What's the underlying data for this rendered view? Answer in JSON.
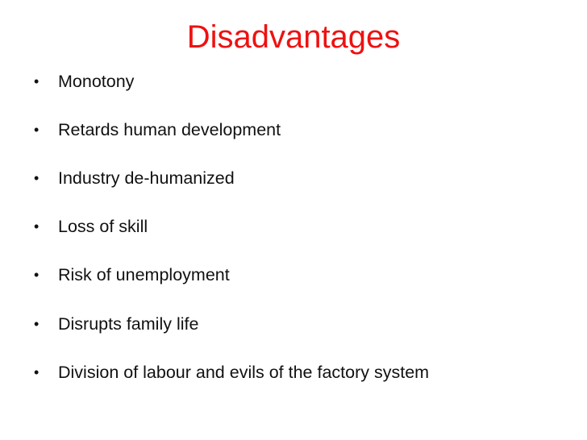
{
  "slide": {
    "title": "Disadvantages",
    "bullet_glyph": "•",
    "items": [
      "Monotony",
      "Retards human development",
      "Industry de-humanized",
      "Loss of skill",
      "Risk of unemployment",
      "Disrupts family life",
      "Division of labour and evils of the factory system"
    ]
  },
  "colors": {
    "title": "#ee1111",
    "text": "#111111",
    "background": "#ffffff"
  }
}
